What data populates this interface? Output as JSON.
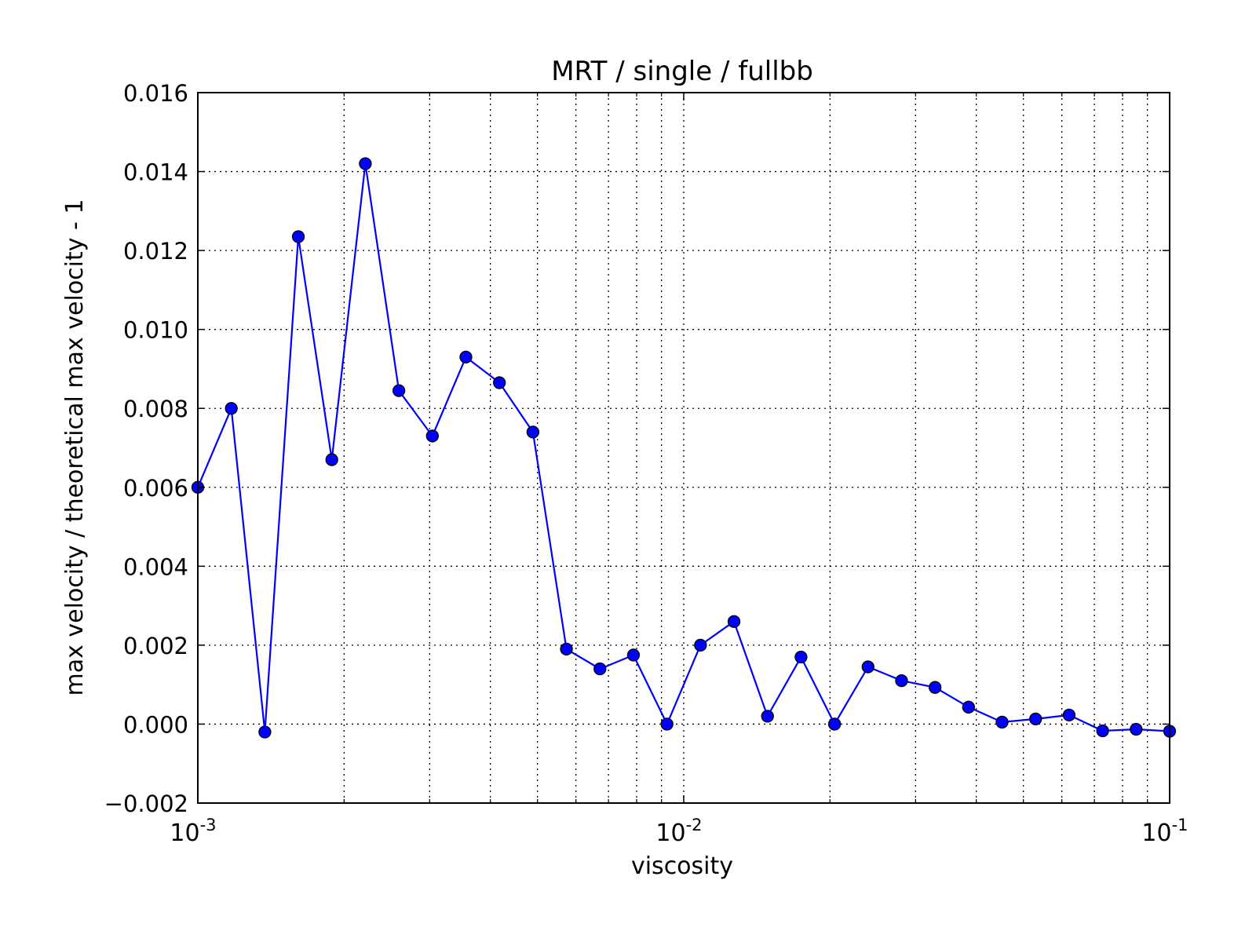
{
  "chart_data": {
    "type": "line",
    "title": "MRT / single / fullbb",
    "xlabel": "viscosity",
    "ylabel": "max velocity / theoretical max velocity - 1",
    "x_scale": "log",
    "xlim": [
      0.001,
      0.1
    ],
    "ylim": [
      -0.002,
      0.016
    ],
    "grid": true,
    "x_major_ticks": [
      {
        "value": 0.001,
        "base": "10",
        "exp": "-3"
      },
      {
        "value": 0.01,
        "base": "10",
        "exp": "-2"
      },
      {
        "value": 0.1,
        "base": "10",
        "exp": "-1"
      }
    ],
    "y_ticks": [
      {
        "value": -0.002,
        "label": "−0.002"
      },
      {
        "value": 0.0,
        "label": "0.000"
      },
      {
        "value": 0.002,
        "label": "0.002"
      },
      {
        "value": 0.004,
        "label": "0.004"
      },
      {
        "value": 0.006,
        "label": "0.006"
      },
      {
        "value": 0.008,
        "label": "0.008"
      },
      {
        "value": 0.01,
        "label": "0.010"
      },
      {
        "value": 0.012,
        "label": "0.012"
      },
      {
        "value": 0.014,
        "label": "0.014"
      },
      {
        "value": 0.016,
        "label": "0.016"
      }
    ],
    "series": [
      {
        "color": "#0000ff",
        "marker": "circle",
        "x": [
          0.001,
          0.001172,
          0.001374,
          0.00161,
          0.001887,
          0.002212,
          0.002593,
          0.003039,
          0.003562,
          0.004175,
          0.004894,
          0.005736,
          0.006723,
          0.00788,
          0.009237,
          0.010826,
          0.01269,
          0.014874,
          0.017433,
          0.020434,
          0.02395,
          0.028072,
          0.032903,
          0.038566,
          0.045203,
          0.052983,
          0.062102,
          0.07279,
          0.085317,
          0.1
        ],
        "y": [
          0.006,
          0.008,
          -0.0002,
          0.01235,
          0.0067,
          0.0142,
          0.00845,
          0.0073,
          0.0093,
          0.00865,
          0.0074,
          0.0019,
          0.0014,
          0.00175,
          0.0,
          0.002,
          0.0026,
          0.0002,
          0.0017,
          0.0,
          0.00145,
          0.0011,
          0.00093,
          0.00043,
          5e-05,
          0.00013,
          0.00023,
          -0.00017,
          -0.00013,
          -0.00018
        ]
      }
    ]
  }
}
